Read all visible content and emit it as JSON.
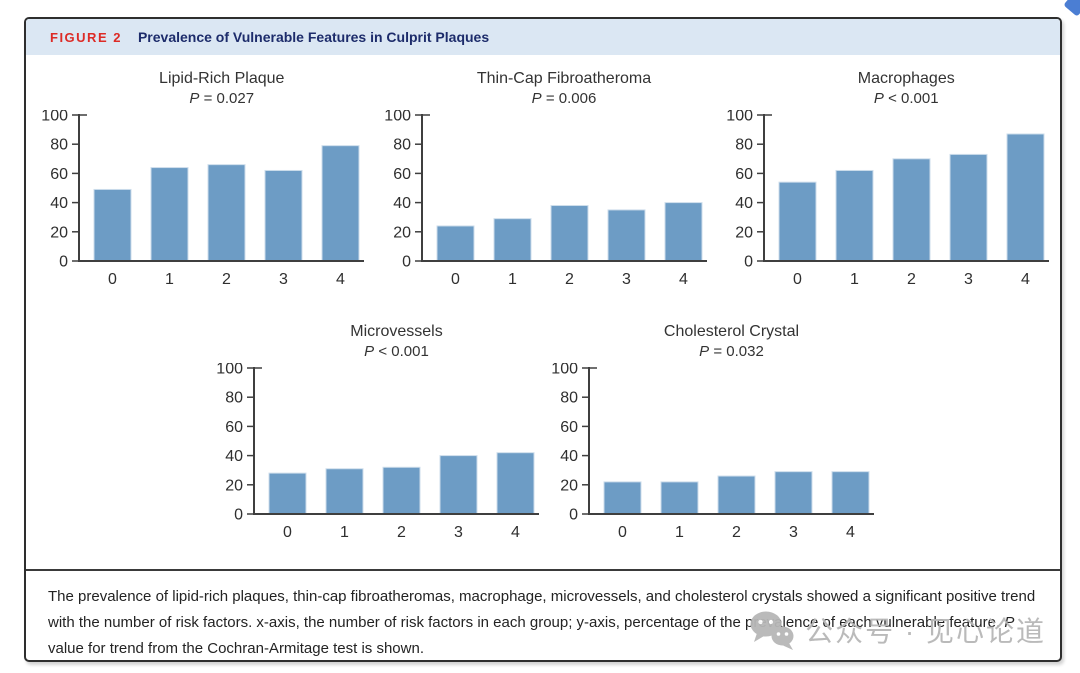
{
  "header": {
    "figure_label": "FIGURE 2",
    "title": "Prevalence of Vulnerable Features in Culprit Plaques"
  },
  "colors": {
    "bar": "#6d9cc5",
    "bar_edge": "#cdddeb",
    "axis": "#3f3f3f",
    "text": "#2f2f2f",
    "header_bg": "#dbe7f3",
    "figure_label_red": "#dd2b26",
    "title_navy": "#1d2c6b",
    "watermark_gray": "#b7b7b7",
    "corner_blue": "#4b7ed3"
  },
  "chart_data": [
    {
      "type": "bar",
      "title": "Lipid-Rich Plaque",
      "p_symbol": "P",
      "p_rest": "= 0.027",
      "categories": [
        "0",
        "1",
        "2",
        "3",
        "4"
      ],
      "values": [
        49,
        64,
        66,
        62,
        79
      ],
      "xlabel": "",
      "ylabel": "",
      "ylim": [
        0,
        100
      ],
      "yticks": [
        0,
        20,
        40,
        60,
        80,
        100
      ],
      "grid": false,
      "legend": false
    },
    {
      "type": "bar",
      "title": "Thin-Cap Fibroatheroma",
      "p_symbol": "P",
      "p_rest": "= 0.006",
      "categories": [
        "0",
        "1",
        "2",
        "3",
        "4"
      ],
      "values": [
        24,
        29,
        38,
        35,
        40
      ],
      "xlabel": "",
      "ylabel": "",
      "ylim": [
        0,
        100
      ],
      "yticks": [
        0,
        20,
        40,
        60,
        80,
        100
      ],
      "grid": false,
      "legend": false
    },
    {
      "type": "bar",
      "title": "Macrophages",
      "p_symbol": "P",
      "p_rest": "< 0.001",
      "categories": [
        "0",
        "1",
        "2",
        "3",
        "4"
      ],
      "values": [
        54,
        62,
        70,
        73,
        87
      ],
      "xlabel": "",
      "ylabel": "",
      "ylim": [
        0,
        100
      ],
      "yticks": [
        0,
        20,
        40,
        60,
        80,
        100
      ],
      "grid": false,
      "legend": false
    },
    {
      "type": "bar",
      "title": "Microvessels",
      "p_symbol": "P",
      "p_rest": "< 0.001",
      "categories": [
        "0",
        "1",
        "2",
        "3",
        "4"
      ],
      "values": [
        28,
        31,
        32,
        40,
        42
      ],
      "xlabel": "",
      "ylabel": "",
      "ylim": [
        0,
        100
      ],
      "yticks": [
        0,
        20,
        40,
        60,
        80,
        100
      ],
      "grid": false,
      "legend": false
    },
    {
      "type": "bar",
      "title": "Cholesterol Crystal",
      "p_symbol": "P",
      "p_rest": "= 0.032",
      "categories": [
        "0",
        "1",
        "2",
        "3",
        "4"
      ],
      "values": [
        22,
        22,
        26,
        29,
        29
      ],
      "xlabel": "",
      "ylabel": "",
      "ylim": [
        0,
        100
      ],
      "yticks": [
        0,
        20,
        40,
        60,
        80,
        100
      ],
      "grid": false,
      "legend": false
    }
  ],
  "caption": {
    "part1": "The prevalence of lipid-rich plaques, thin-cap fibroatheromas, macrophage, microvessels, and cholesterol crystals showed a significant positive trend with the number of risk factors. x-axis, the number of risk factors in each group; y-axis, percentage of the prevalence of each vulnerable feature. ",
    "p_italic": "P",
    "part2": " value for trend from the Cochran-Armitage test is shown."
  },
  "watermark": {
    "icon": "wechat-icon",
    "text": "公众号 · 见心论道"
  }
}
